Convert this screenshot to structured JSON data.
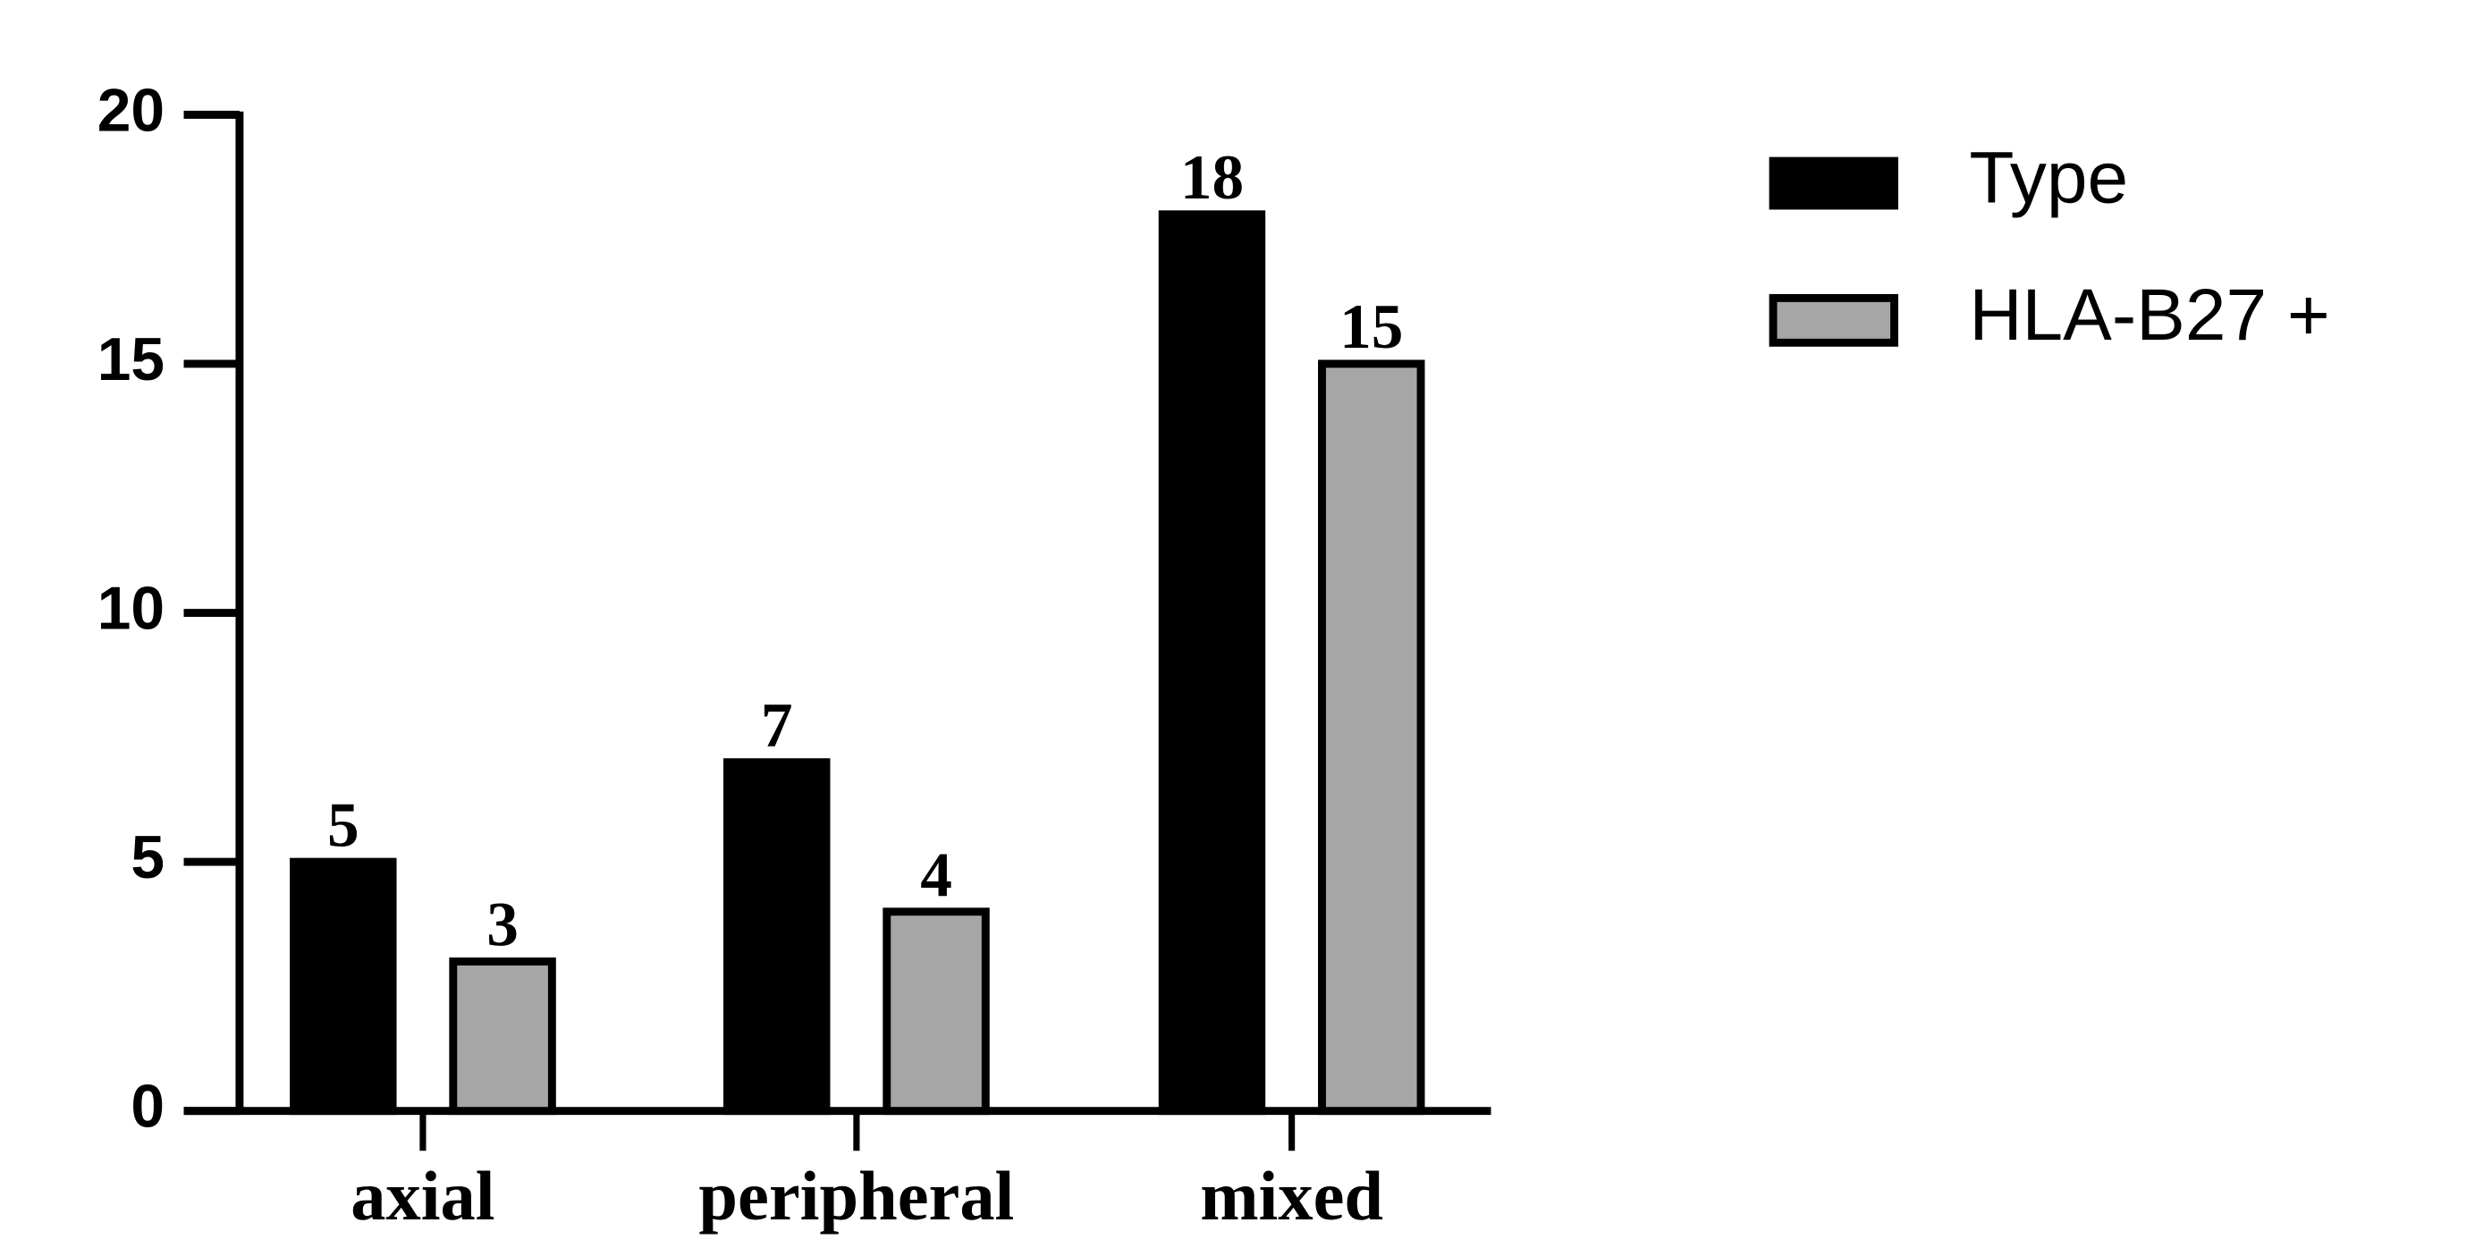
{
  "chart_data": {
    "type": "bar",
    "categories": [
      "axial",
      "peripheral",
      "mixed"
    ],
    "series": [
      {
        "name": "Type",
        "color": "#000000",
        "values": [
          5,
          7,
          18
        ]
      },
      {
        "name": "HLA-B27 +",
        "color": "#a6a6a6",
        "values": [
          3,
          4,
          15
        ]
      }
    ],
    "ylim": [
      0,
      20
    ],
    "yticks": [
      0,
      5,
      10,
      15,
      20
    ],
    "grid": false,
    "legend": "right"
  }
}
